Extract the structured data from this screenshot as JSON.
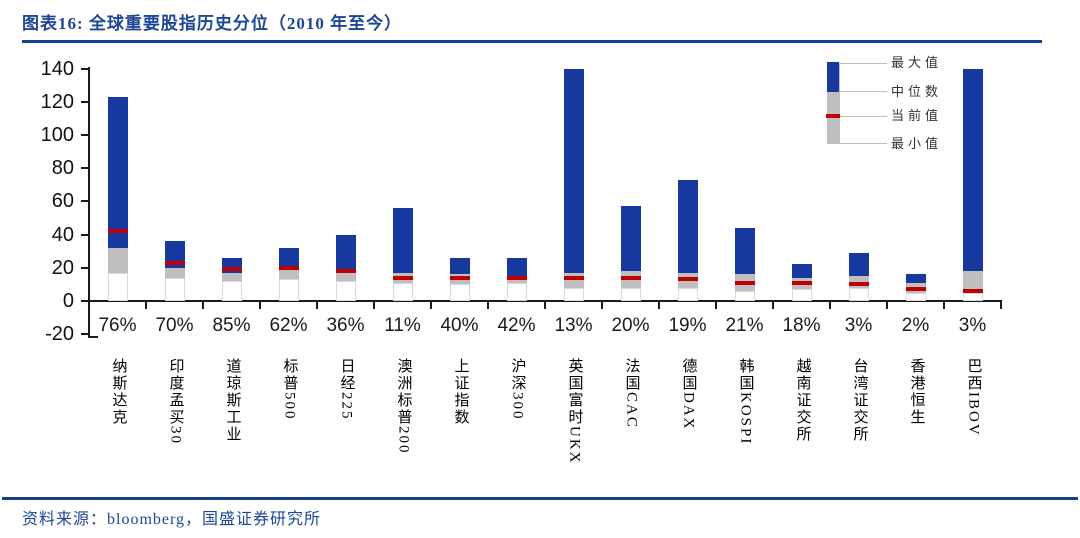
{
  "header": {
    "title": "图表16:  全球重要股指历史分位（2010 年至今）"
  },
  "footer": {
    "source": "资料来源：bloomberg，国盛证券研究所"
  },
  "legend": {
    "max_label": "最大值",
    "median_label": "中位数",
    "current_label": "当前值",
    "min_label": "最小值"
  },
  "colors": {
    "brand_blue": "#1D4697",
    "rule_blue": "#16418F",
    "bar_blue": "#17389E",
    "bar_gray": "#BFBFBF",
    "current_red": "#C00000",
    "bar_base_border": "#D9D9D9",
    "axis_black": "#1a1a1a"
  },
  "chart_data": {
    "type": "bar",
    "subtype": "floating-range-bars (min/median/max with current-value marker)",
    "title": "全球重要股指历史分位（2010 年至今）",
    "xlabel": "",
    "ylabel": "",
    "ylim": [
      -20,
      140
    ],
    "yticks": [
      140,
      120,
      100,
      80,
      60,
      40,
      20,
      0,
      -20
    ],
    "grid": false,
    "legend_position": "top-right",
    "legend": [
      "最大值",
      "中位数",
      "当前值",
      "最小值"
    ],
    "categories": [
      "纳斯达克",
      "印度孟买30",
      "道琼斯工业",
      "标普500",
      "日经225",
      "澳洲标普200",
      "上证指数",
      "沪深300",
      "英国富时UKX",
      "法国CAC",
      "德国DAX",
      "韩国KOSPI",
      "越南证交所",
      "台湾证交所",
      "香港恒生",
      "巴西IBOV"
    ],
    "percentile_labels": [
      "76%",
      "70%",
      "85%",
      "62%",
      "36%",
      "11%",
      "40%",
      "42%",
      "13%",
      "20%",
      "19%",
      "21%",
      "18%",
      "3%",
      "2%",
      "3%"
    ],
    "series": [
      {
        "name": "最大值",
        "values": [
          123,
          36,
          26,
          32,
          40,
          56,
          26,
          26,
          140,
          57,
          73,
          44,
          22,
          29,
          16,
          140
        ]
      },
      {
        "name": "中位数",
        "values": [
          32,
          20,
          17,
          19,
          19,
          17,
          16,
          15,
          17,
          18,
          17,
          16,
          14,
          15,
          11,
          18
        ]
      },
      {
        "name": "当前值",
        "values": [
          42,
          23,
          19,
          20,
          18,
          14,
          14,
          14,
          14,
          14,
          13,
          11,
          11,
          10,
          7,
          6
        ]
      },
      {
        "name": "最小值",
        "values": [
          17,
          14,
          12,
          13,
          12,
          11,
          10,
          11,
          8,
          8,
          8,
          6,
          7,
          8,
          5,
          5
        ]
      }
    ]
  }
}
